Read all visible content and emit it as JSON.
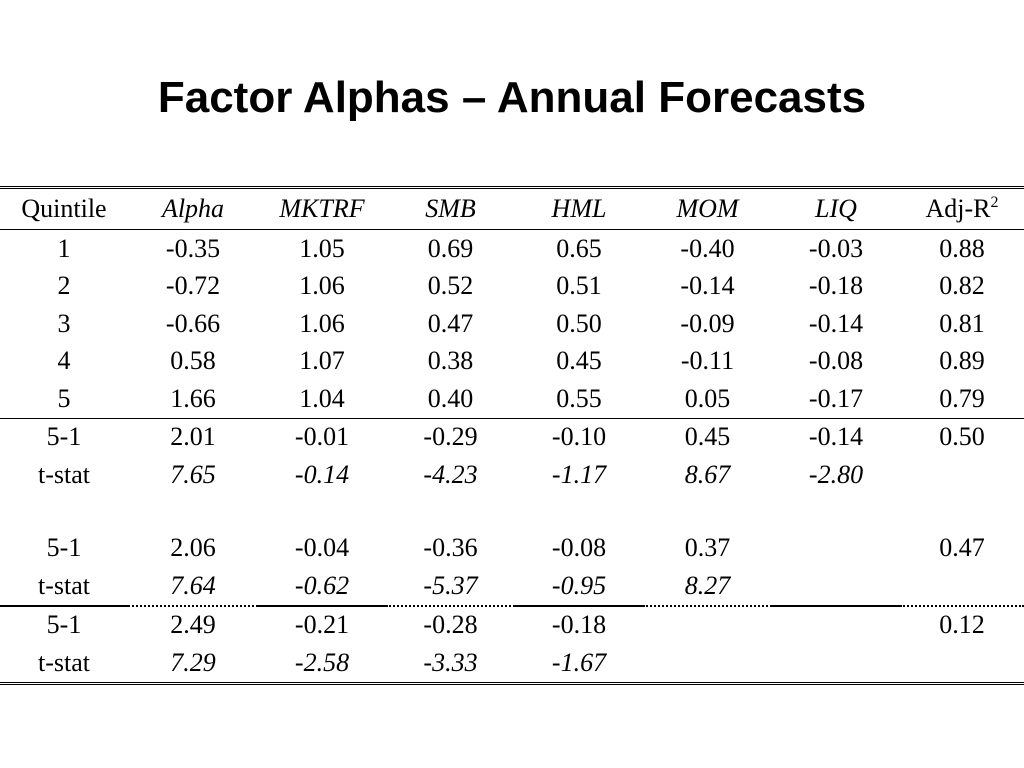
{
  "title": "Factor Alphas – Annual Forecasts",
  "table": {
    "headers": [
      "Quintile",
      "Alpha",
      "MKTRF",
      "SMB",
      "HML",
      "MOM",
      "LIQ",
      "Adj-R"
    ],
    "adjr_superscript": "2",
    "quintile_rows": [
      [
        "1",
        "-0.35",
        "1.05",
        "0.69",
        "0.65",
        "-0.40",
        "-0.03",
        "0.88"
      ],
      [
        "2",
        "-0.72",
        "1.06",
        "0.52",
        "0.51",
        "-0.14",
        "-0.18",
        "0.82"
      ],
      [
        "3",
        "-0.66",
        "1.06",
        "0.47",
        "0.50",
        "-0.09",
        "-0.14",
        "0.81"
      ],
      [
        "4",
        "0.58",
        "1.07",
        "0.38",
        "0.45",
        "-0.11",
        "-0.08",
        "0.89"
      ],
      [
        "5",
        "1.66",
        "1.04",
        "0.40",
        "0.55",
        "0.05",
        "-0.17",
        "0.79"
      ]
    ],
    "model_a": {
      "spread": [
        "5-1",
        "2.01",
        "-0.01",
        "-0.29",
        "-0.10",
        "0.45",
        "-0.14",
        "0.50"
      ],
      "tstat": [
        "t-stat",
        "7.65",
        "-0.14",
        "-4.23",
        "-1.17",
        "8.67",
        "-2.80",
        ""
      ]
    },
    "model_b": {
      "spread": [
        "5-1",
        "2.06",
        "-0.04",
        "-0.36",
        "-0.08",
        "0.37",
        "",
        "0.47"
      ],
      "tstat": [
        "t-stat",
        "7.64",
        "-0.62",
        "-5.37",
        "-0.95",
        "8.27",
        "",
        ""
      ]
    },
    "model_c": {
      "spread": [
        "5-1",
        "2.49",
        "-0.21",
        "-0.28",
        "-0.18",
        "",
        "",
        "0.12"
      ],
      "tstat": [
        "t-stat",
        "7.29",
        "-2.58",
        "-3.33",
        "-1.67",
        "",
        "",
        ""
      ]
    }
  }
}
